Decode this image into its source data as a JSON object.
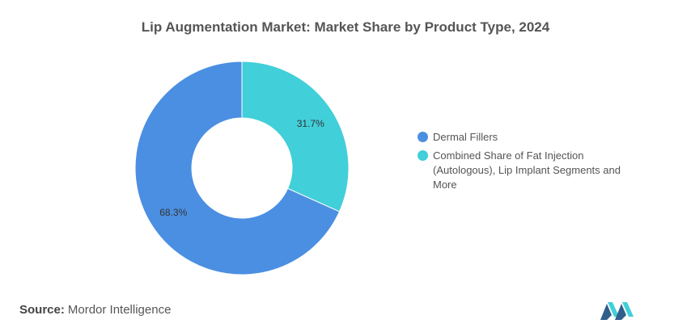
{
  "chart_data": {
    "type": "pie",
    "title": "Lip Augmentation Market: Market Share by Product Type, 2024",
    "donut": true,
    "legend_position": "right",
    "slices": [
      {
        "label": "Combined Share of Fat Injection (Autologous), Lip Implant Segments and More",
        "value": 31.7,
        "display": "31.7%",
        "color": "#41cfd9"
      },
      {
        "label": "Dermal Fillers",
        "value": 68.3,
        "display": "68.3%",
        "color": "#4b8fe2"
      }
    ],
    "legend": [
      {
        "label": "Dermal Fillers",
        "color": "#4b8fe2"
      },
      {
        "label": "Combined Share of Fat Injection (Autologous), Lip Implant Segments and More",
        "color": "#41cfd9"
      }
    ]
  },
  "source": {
    "label": "Source:",
    "text": "Mordor Intelligence"
  },
  "logo": {
    "name": "mordor-intelligence-logo",
    "colors": [
      "#2f5f8a",
      "#41cfd9"
    ]
  }
}
